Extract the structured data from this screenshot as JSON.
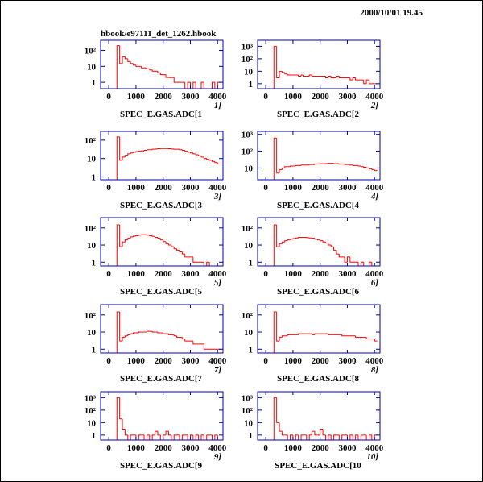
{
  "date": "2000/10/01  19.45",
  "file": "hbook/e97111_det_1262.hbook",
  "chart_data": [
    {
      "type": "histogram",
      "id": "1]",
      "xlabel": "SPEC_E.GAS.ADC[1",
      "color": "#ff0000",
      "log_y": true,
      "xlim": [
        -300,
        4200
      ],
      "ylim": [
        0.4,
        430
      ],
      "xticks": [
        0,
        1000,
        2000,
        3000,
        4000
      ],
      "yticks": [
        1,
        10,
        {
          "value": 100,
          "label": "10²"
        }
      ],
      "bins": [
        0,
        100,
        200,
        300,
        400,
        500,
        600,
        700,
        800,
        900,
        1000,
        1100,
        1200,
        1300,
        1400,
        1500,
        1600,
        1700,
        1800,
        1900,
        2000,
        2100,
        2200,
        2300,
        2400,
        2500,
        2600,
        2700,
        2800,
        2900,
        3000,
        3100,
        3200,
        3300,
        3400,
        3500,
        3600,
        3700,
        3800,
        3900,
        4000,
        4100
      ],
      "counts": [
        0,
        0,
        0,
        200,
        15,
        40,
        30,
        20,
        15,
        12,
        10,
        10,
        8,
        8,
        7,
        6,
        5,
        5,
        4,
        3,
        3,
        2,
        2,
        2,
        1,
        1,
        1,
        1,
        0,
        1,
        0,
        1,
        0,
        0,
        1,
        0,
        0,
        0,
        1,
        0,
        1
      ]
    },
    {
      "type": "histogram",
      "id": "2]",
      "xlabel": "SPEC_E.GAS.ADC[2",
      "color": "#ff0000",
      "log_y": true,
      "xlim": [
        -300,
        4200
      ],
      "ylim": [
        0.4,
        3000
      ],
      "xticks": [
        0,
        1000,
        2000,
        3000,
        4000
      ],
      "yticks": [
        1,
        10,
        {
          "value": 100,
          "label": "10²"
        },
        {
          "value": 1000,
          "label": "10³"
        }
      ],
      "bins": [
        0,
        100,
        200,
        300,
        400,
        500,
        600,
        700,
        800,
        900,
        1000,
        1100,
        1200,
        1300,
        1400,
        1500,
        1600,
        1700,
        1800,
        1900,
        2000,
        2100,
        2200,
        2300,
        2400,
        2500,
        2600,
        2700,
        2800,
        2900,
        3000,
        3100,
        3200,
        3300,
        3400,
        3500,
        3600,
        3700,
        3800,
        3900,
        4000,
        4100
      ],
      "counts": [
        0,
        0,
        0,
        1000,
        3,
        10,
        8,
        6,
        5,
        5,
        5,
        5,
        4,
        5,
        4,
        4,
        5,
        4,
        4,
        4,
        4,
        4,
        3,
        4,
        3,
        3,
        4,
        3,
        3,
        3,
        3,
        2,
        3,
        2,
        2,
        2,
        1,
        2,
        1,
        1,
        1
      ]
    },
    {
      "type": "histogram",
      "id": "3]",
      "xlabel": "SPEC_E.GAS.ADC[3",
      "color": "#ff0000",
      "log_y": true,
      "xlim": [
        -300,
        4200
      ],
      "ylim": [
        0.7,
        300
      ],
      "xticks": [
        0,
        1000,
        2000,
        3000,
        4000
      ],
      "yticks": [
        1,
        10,
        {
          "value": 100,
          "label": "10²"
        }
      ],
      "bins": [
        0,
        100,
        200,
        300,
        400,
        500,
        600,
        700,
        800,
        900,
        1000,
        1100,
        1200,
        1300,
        1400,
        1500,
        1600,
        1700,
        1800,
        1900,
        2000,
        2100,
        2200,
        2300,
        2400,
        2500,
        2600,
        2700,
        2800,
        2900,
        3000,
        3100,
        3200,
        3300,
        3400,
        3500,
        3600,
        3700,
        3800,
        3900,
        4000,
        4100
      ],
      "counts": [
        0,
        0,
        0,
        150,
        8,
        12,
        15,
        18,
        20,
        22,
        24,
        25,
        26,
        28,
        30,
        30,
        32,
        33,
        34,
        35,
        35,
        35,
        34,
        33,
        32,
        32,
        30,
        28,
        25,
        22,
        20,
        18,
        16,
        14,
        12,
        10,
        9,
        8,
        7,
        6,
        5
      ]
    },
    {
      "type": "histogram",
      "id": "4]",
      "xlabel": "SPEC_E.GAS.ADC[4",
      "color": "#ff0000",
      "log_y": true,
      "xlim": [
        -300,
        4200
      ],
      "ylim": [
        2,
        1500
      ],
      "xticks": [
        0,
        1000,
        2000,
        3000,
        4000
      ],
      "yticks": [
        10,
        {
          "value": 100,
          "label": "10²"
        },
        {
          "value": 1000,
          "label": "10³"
        }
      ],
      "bins": [
        0,
        100,
        200,
        300,
        400,
        500,
        600,
        700,
        800,
        900,
        1000,
        1100,
        1200,
        1300,
        1400,
        1500,
        1600,
        1700,
        1800,
        1900,
        2000,
        2100,
        2200,
        2300,
        2400,
        2500,
        2600,
        2700,
        2800,
        2900,
        3000,
        3100,
        3200,
        3300,
        3400,
        3500,
        3600,
        3700,
        3800,
        3900,
        4000,
        4100
      ],
      "counts": [
        0,
        0,
        0,
        600,
        5,
        8,
        10,
        12,
        12,
        13,
        13,
        14,
        14,
        15,
        15,
        15,
        16,
        16,
        17,
        17,
        18,
        18,
        18,
        19,
        19,
        18,
        18,
        17,
        17,
        16,
        16,
        15,
        14,
        14,
        13,
        12,
        11,
        10,
        9,
        8,
        7
      ]
    },
    {
      "type": "histogram",
      "id": "5]",
      "xlabel": "SPEC_E.GAS.ADC[5",
      "color": "#ff0000",
      "log_y": true,
      "xlim": [
        -300,
        4200
      ],
      "ylim": [
        0.6,
        400
      ],
      "xticks": [
        0,
        1000,
        2000,
        3000,
        4000
      ],
      "yticks": [
        1,
        10,
        {
          "value": 100,
          "label": "10²"
        }
      ],
      "bins": [
        0,
        100,
        200,
        300,
        400,
        500,
        600,
        700,
        800,
        900,
        1000,
        1100,
        1200,
        1300,
        1400,
        1500,
        1600,
        1700,
        1800,
        1900,
        2000,
        2100,
        2200,
        2300,
        2400,
        2500,
        2600,
        2700,
        2800,
        2900,
        3000,
        3100,
        3200,
        3300,
        3400,
        3500,
        3600,
        3700,
        3800,
        3900,
        4000,
        4100
      ],
      "counts": [
        0,
        0,
        0,
        150,
        8,
        15,
        20,
        25,
        30,
        33,
        35,
        38,
        40,
        40,
        38,
        35,
        32,
        28,
        25,
        20,
        16,
        12,
        10,
        8,
        6,
        5,
        4,
        3,
        2,
        2,
        2,
        1,
        1,
        1,
        1,
        0,
        1,
        0,
        0,
        0,
        0
      ]
    },
    {
      "type": "histogram",
      "id": "6]",
      "xlabel": "SPEC_E.GAS.ADC[6",
      "color": "#ff0000",
      "log_y": true,
      "xlim": [
        -300,
        4200
      ],
      "ylim": [
        0.6,
        400
      ],
      "xticks": [
        0,
        1000,
        2000,
        3000,
        4000
      ],
      "yticks": [
        1,
        10,
        {
          "value": 100,
          "label": "10²"
        }
      ],
      "bins": [
        0,
        100,
        200,
        300,
        400,
        500,
        600,
        700,
        800,
        900,
        1000,
        1100,
        1200,
        1300,
        1400,
        1500,
        1600,
        1700,
        1800,
        1900,
        2000,
        2100,
        2200,
        2300,
        2400,
        2500,
        2600,
        2700,
        2800,
        2900,
        3000,
        3100,
        3200,
        3300,
        3400,
        3500,
        3600,
        3700,
        3800,
        3900,
        4000,
        4100
      ],
      "counts": [
        0,
        0,
        0,
        150,
        8,
        12,
        15,
        18,
        20,
        22,
        24,
        26,
        28,
        28,
        28,
        27,
        26,
        25,
        22,
        20,
        18,
        15,
        13,
        10,
        8,
        5,
        3,
        2,
        2,
        1,
        2,
        1,
        1,
        1,
        0,
        1,
        0,
        0,
        1,
        0,
        0
      ]
    },
    {
      "type": "histogram",
      "id": "7]",
      "xlabel": "SPEC_E.GAS.ADC[7",
      "color": "#ff0000",
      "log_y": true,
      "xlim": [
        -300,
        4200
      ],
      "ylim": [
        0.6,
        400
      ],
      "xticks": [
        0,
        1000,
        2000,
        3000,
        4000
      ],
      "yticks": [
        1,
        10,
        {
          "value": 100,
          "label": "10²"
        }
      ],
      "bins": [
        0,
        100,
        200,
        300,
        400,
        500,
        600,
        700,
        800,
        900,
        1000,
        1100,
        1200,
        1300,
        1400,
        1500,
        1600,
        1700,
        1800,
        1900,
        2000,
        2100,
        2200,
        2300,
        2400,
        2500,
        2600,
        2700,
        2800,
        2900,
        3000,
        3100,
        3200,
        3300,
        3400,
        3500,
        3600,
        3700,
        3800,
        3900,
        4000,
        4100
      ],
      "counts": [
        0,
        0,
        0,
        150,
        3,
        5,
        6,
        7,
        8,
        9,
        9,
        10,
        10,
        10,
        11,
        11,
        10,
        10,
        9,
        9,
        8,
        8,
        7,
        7,
        6,
        5,
        5,
        4,
        3,
        3,
        3,
        2,
        2,
        2,
        2,
        1,
        1,
        1,
        1,
        1,
        1
      ]
    },
    {
      "type": "histogram",
      "id": "8]",
      "xlabel": "SPEC_E.GAS.ADC[8",
      "color": "#ff0000",
      "log_y": true,
      "xlim": [
        -300,
        4200
      ],
      "ylim": [
        0.6,
        400
      ],
      "xticks": [
        0,
        1000,
        2000,
        3000,
        4000
      ],
      "yticks": [
        1,
        10,
        {
          "value": 100,
          "label": "10²"
        }
      ],
      "bins": [
        0,
        100,
        200,
        300,
        400,
        500,
        600,
        700,
        800,
        900,
        1000,
        1100,
        1200,
        1300,
        1400,
        1500,
        1600,
        1700,
        1800,
        1900,
        2000,
        2100,
        2200,
        2300,
        2400,
        2500,
        2600,
        2700,
        2800,
        2900,
        3000,
        3100,
        3200,
        3300,
        3400,
        3500,
        3600,
        3700,
        3800,
        3900,
        4000,
        4100
      ],
      "counts": [
        0,
        0,
        0,
        150,
        3,
        5,
        6,
        6,
        7,
        7,
        7,
        7,
        8,
        8,
        8,
        8,
        8,
        7,
        8,
        8,
        8,
        8,
        8,
        7,
        7,
        7,
        7,
        7,
        6,
        6,
        6,
        6,
        6,
        5,
        5,
        5,
        5,
        4,
        4,
        4,
        3
      ]
    },
    {
      "type": "histogram",
      "id": "9]",
      "xlabel": "SPEC_E.GAS.ADC[9",
      "color": "#ff0000",
      "log_y": true,
      "xlim": [
        -300,
        4200
      ],
      "ylim": [
        0.4,
        3000
      ],
      "xticks": [
        0,
        1000,
        2000,
        3000,
        4000
      ],
      "yticks": [
        1,
        10,
        {
          "value": 100,
          "label": "10²"
        },
        {
          "value": 1000,
          "label": "10³"
        }
      ],
      "bins": [
        0,
        100,
        200,
        300,
        400,
        500,
        600,
        700,
        800,
        900,
        1000,
        1100,
        1200,
        1300,
        1400,
        1500,
        1600,
        1700,
        1800,
        1900,
        2000,
        2100,
        2200,
        2300,
        2400,
        2500,
        2600,
        2700,
        2800,
        2900,
        3000,
        3100,
        3200,
        3300,
        3400,
        3500,
        3600,
        3700,
        3800,
        3900,
        4000,
        4100
      ],
      "counts": [
        0,
        0,
        0,
        1000,
        20,
        3,
        1,
        0,
        1,
        1,
        0,
        1,
        1,
        0,
        1,
        0,
        1,
        2,
        1,
        0,
        1,
        2,
        1,
        0,
        1,
        1,
        0,
        1,
        1,
        0,
        1,
        0,
        1,
        0,
        1,
        0,
        1,
        1,
        0,
        1,
        0
      ]
    },
    {
      "type": "histogram",
      "id": "10]",
      "xlabel": "SPEC_E.GAS.ADC[10",
      "color": "#ff0000",
      "log_y": true,
      "xlim": [
        -300,
        4200
      ],
      "ylim": [
        0.4,
        3000
      ],
      "xticks": [
        0,
        1000,
        2000,
        3000,
        4000
      ],
      "yticks": [
        1,
        10,
        {
          "value": 100,
          "label": "10²"
        },
        {
          "value": 1000,
          "label": "10³"
        }
      ],
      "bins": [
        0,
        100,
        200,
        300,
        400,
        500,
        600,
        700,
        800,
        900,
        1000,
        1100,
        1200,
        1300,
        1400,
        1500,
        1600,
        1700,
        1800,
        1900,
        2000,
        2100,
        2200,
        2300,
        2400,
        2500,
        2600,
        2700,
        2800,
        2900,
        3000,
        3100,
        3200,
        3300,
        3400,
        3500,
        3600,
        3700,
        3800,
        3900,
        4000,
        4100
      ],
      "counts": [
        0,
        0,
        0,
        1000,
        10,
        2,
        1,
        1,
        0,
        1,
        0,
        1,
        0,
        1,
        1,
        0,
        1,
        2,
        1,
        1,
        3,
        1,
        0,
        1,
        0,
        1,
        1,
        0,
        1,
        1,
        0,
        1,
        0,
        1,
        0,
        1,
        1,
        0,
        1,
        0,
        1
      ]
    }
  ]
}
